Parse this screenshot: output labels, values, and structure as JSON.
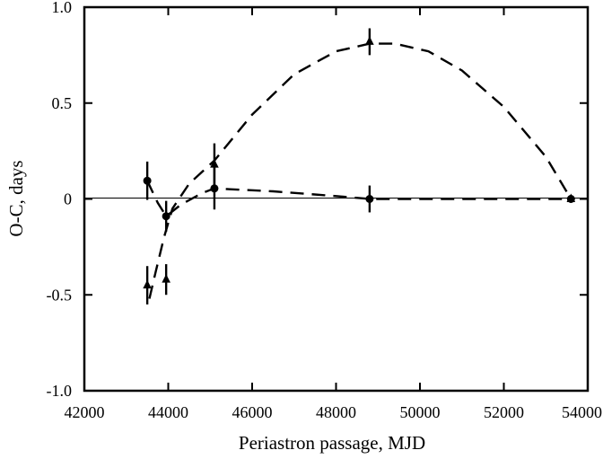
{
  "chart_data": {
    "type": "scatter",
    "xlabel": "Periastron passage, MJD",
    "ylabel": "O-C, days",
    "xlim": [
      42000,
      54000
    ],
    "ylim": [
      -1.0,
      1.0
    ],
    "xticks": [
      42000,
      44000,
      46000,
      48000,
      50000,
      52000,
      54000
    ],
    "xtick_labels": [
      "42000",
      "44000",
      "46000",
      "48000",
      "50000",
      "52000",
      "54000"
    ],
    "yticks": [
      -1.0,
      -0.5,
      0,
      0.5,
      1.0
    ],
    "ytick_labels": [
      "-1.0",
      "-0.5",
      "0",
      "0.5",
      "1.0"
    ],
    "zero_line": true,
    "grid": false,
    "series": [
      {
        "marker": "circle",
        "x": [
          43500,
          43950,
          45100,
          48800,
          53600
        ],
        "y": [
          0.095,
          -0.09,
          0.055,
          0.0,
          0.0
        ],
        "yerr": [
          0.1,
          0.08,
          0.11,
          0.07,
          0.0
        ]
      },
      {
        "marker": "triangle",
        "x": [
          43500,
          43950,
          45100,
          48800,
          53600
        ],
        "y": [
          -0.45,
          -0.42,
          0.18,
          0.82,
          0.0
        ],
        "yerr": [
          0.1,
          0.08,
          0.11,
          0.07,
          0.0
        ]
      }
    ],
    "fit_curves": [
      {
        "style": "dashed",
        "x": [
          43550,
          43700,
          43900,
          44100,
          44500,
          45100,
          46000,
          47000,
          48000,
          48800,
          49400,
          50200,
          51000,
          52000,
          53000,
          53600
        ],
        "y": [
          -0.52,
          -0.38,
          -0.2,
          -0.05,
          0.08,
          0.2,
          0.44,
          0.65,
          0.77,
          0.81,
          0.81,
          0.77,
          0.67,
          0.48,
          0.22,
          0.0
        ]
      },
      {
        "style": "dashed",
        "x": [
          43500,
          43750,
          43950,
          44300,
          44800,
          45100,
          46500,
          48000,
          48800,
          50500,
          52000,
          53600
        ],
        "y": [
          0.095,
          -0.02,
          -0.09,
          -0.03,
          0.03,
          0.055,
          0.04,
          0.015,
          0.0,
          0.0,
          0.0,
          0.0
        ]
      }
    ]
  }
}
